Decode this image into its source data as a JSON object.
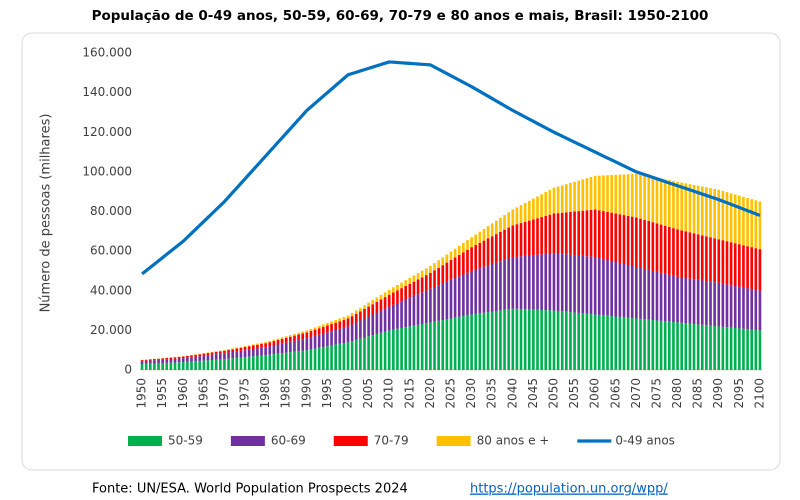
{
  "chart_data": {
    "type": "bar",
    "stacked": true,
    "title": "População de 0-49 anos, 50-59, 60-69, 70-79 e 80 anos e mais, Brasil: 1950-2100",
    "y_label": "Número de pessoas (milhares)",
    "source": "Fonte: UN/ESA. World Population Prospects 2024",
    "source_link": "https://population.un.org/wpp/",
    "categories": [
      "1950",
      null,
      null,
      null,
      null,
      "1955",
      null,
      null,
      null,
      null,
      "1960",
      null,
      null,
      null,
      null,
      "1965",
      null,
      null,
      null,
      null,
      "1970",
      null,
      null,
      null,
      null,
      "1975",
      null,
      null,
      null,
      null,
      "1980",
      null,
      null,
      null,
      null,
      "1985",
      null,
      null,
      null,
      null,
      "1990",
      null,
      null,
      null,
      null,
      "1995",
      null,
      null,
      null,
      null,
      "2000",
      null,
      null,
      null,
      null,
      "2005",
      null,
      null,
      null,
      null,
      "2010",
      null,
      null,
      null,
      null,
      "2015",
      null,
      null,
      null,
      null,
      "2020",
      null,
      null,
      null,
      null,
      "2025",
      null,
      null,
      null,
      null,
      "2030",
      null,
      null,
      null,
      null,
      "2035",
      null,
      null,
      null,
      null,
      "2040",
      null,
      null,
      null,
      null,
      "2045",
      null,
      null,
      null,
      null,
      "2050",
      null,
      null,
      null,
      null,
      "2055",
      null,
      null,
      null,
      null,
      "2060",
      null,
      null,
      null,
      null,
      "2065",
      null,
      null,
      null,
      null,
      "2070",
      null,
      null,
      null,
      null,
      "2075",
      null,
      null,
      null,
      null,
      "2080",
      null,
      null,
      null,
      null,
      "2085",
      null,
      null,
      null,
      null,
      "2090",
      null,
      null,
      null,
      null,
      "2095",
      null,
      null,
      null,
      null,
      "2100"
    ],
    "ylim": [
      0,
      160000
    ],
    "yticks": [
      0,
      {
        "value": 20000,
        "label": "20.000"
      },
      {
        "value": 40000,
        "label": "40.000"
      },
      {
        "value": 60000,
        "label": "60.000"
      },
      {
        "value": 80000,
        "label": "80.000"
      },
      {
        "value": 100000,
        "label": "100.000"
      },
      {
        "value": 120000,
        "label": "120.000"
      },
      {
        "value": 140000,
        "label": "140.000"
      },
      {
        "value": 160000,
        "label": "160.000"
      }
    ],
    "legend": "bottom",
    "series": [
      {
        "name": "50-59",
        "color": "#00b050",
        "values": [
          3000,
          3100,
          3200,
          3300,
          3400,
          3500,
          3600,
          3700,
          3800,
          3900,
          4000,
          4150,
          4300,
          4450,
          4600,
          4750,
          4900,
          5050,
          5200,
          5350,
          5500,
          5700,
          5900,
          6100,
          6300,
          6500,
          6700,
          6900,
          7100,
          7300,
          7500,
          7750,
          8000,
          8250,
          8500,
          8750,
          9000,
          9250,
          9500,
          9750,
          10000,
          10400,
          10800,
          11200,
          11600,
          12000,
          12400,
          12800,
          13200,
          13600,
          14000,
          14600,
          15200,
          15800,
          16400,
          17000,
          17600,
          18200,
          18800,
          19400,
          20000,
          20400,
          20800,
          21200,
          21600,
          22000,
          22400,
          22800,
          23200,
          23600,
          24000,
          24400,
          24800,
          25200,
          25600,
          26000,
          26400,
          26800,
          27200,
          27600,
          28000,
          28300,
          28600,
          28900,
          29200,
          29500,
          29800,
          30100,
          30400,
          30700,
          31000,
          30900,
          30800,
          30700,
          30600,
          30500,
          30400,
          30300,
          30200,
          30100,
          30000,
          29800,
          29600,
          29400,
          29200,
          29000,
          28800,
          28600,
          28400,
          28200,
          28000,
          27800,
          27600,
          27400,
          27200,
          27000,
          26800,
          26600,
          26400,
          26200,
          26000,
          25800,
          25600,
          25400,
          25200,
          25000,
          24800,
          24600,
          24400,
          24200,
          24000,
          23800,
          23600,
          23400,
          23200,
          23000,
          22800,
          22600,
          22400,
          22200,
          22000,
          21800,
          21600,
          21400,
          21200,
          21000,
          20800,
          20600,
          20400,
          20200,
          20000
        ]
      },
      {
        "name": "60-69",
        "color": "#7030a0",
        "values": [
          1500,
          1550,
          1600,
          1650,
          1700,
          1750,
          1800,
          1850,
          1900,
          1950,
          2000,
          2100,
          2200,
          2300,
          2400,
          2500,
          2600,
          2700,
          2800,
          2900,
          3000,
          3100,
          3200,
          3300,
          3400,
          3500,
          3600,
          3700,
          3800,
          3900,
          4000,
          4200,
          4400,
          4600,
          4800,
          5000,
          5200,
          5400,
          5600,
          5800,
          6000,
          6200,
          6400,
          6600,
          6800,
          7000,
          7200,
          7400,
          7600,
          7800,
          8000,
          8400,
          8800,
          9200,
          9600,
          10000,
          10400,
          10800,
          11200,
          11600,
          12000,
          12500,
          13000,
          13500,
          14000,
          14500,
          15000,
          15500,
          16000,
          16500,
          17000,
          17500,
          18000,
          18500,
          19000,
          19500,
          20000,
          20500,
          21000,
          21500,
          22000,
          22400,
          22800,
          23200,
          23600,
          24000,
          24400,
          24800,
          25200,
          25600,
          26000,
          26300,
          26600,
          26900,
          27200,
          27500,
          27800,
          28100,
          28400,
          28700,
          29000,
          29000,
          29000,
          29000,
          29000,
          29000,
          29000,
          29000,
          29000,
          29000,
          29000,
          28700,
          28400,
          28100,
          27800,
          27500,
          27200,
          26900,
          26600,
          26300,
          26000,
          25700,
          25400,
          25100,
          24800,
          24500,
          24200,
          23900,
          23600,
          23300,
          23000,
          22900,
          22800,
          22700,
          22600,
          22500,
          22400,
          22300,
          22200,
          22100,
          22000,
          21800,
          21600,
          21400,
          21200,
          21000,
          20800,
          20600,
          20400,
          20200,
          20000
        ]
      },
      {
        "name": "70-79",
        "color": "#ff0000",
        "values": [
          500,
          530,
          560,
          590,
          620,
          650,
          680,
          710,
          740,
          770,
          800,
          840,
          880,
          920,
          960,
          1000,
          1040,
          1080,
          1120,
          1160,
          1200,
          1280,
          1360,
          1440,
          1520,
          1600,
          1680,
          1760,
          1840,
          1920,
          2000,
          2100,
          2200,
          2300,
          2400,
          2500,
          2600,
          2700,
          2800,
          2900,
          3000,
          3100,
          3200,
          3300,
          3400,
          3500,
          3600,
          3700,
          3800,
          3900,
          4000,
          4200,
          4400,
          4600,
          4800,
          5000,
          5200,
          5400,
          5600,
          5800,
          6000,
          6200,
          6400,
          6600,
          6800,
          7000,
          7200,
          7400,
          7600,
          7800,
          8000,
          8400,
          8800,
          9200,
          9600,
          10000,
          10400,
          10800,
          11200,
          11600,
          12000,
          12400,
          12800,
          13200,
          13600,
          14000,
          14400,
          14800,
          15200,
          15600,
          16000,
          16400,
          16800,
          17200,
          17600,
          18000,
          18400,
          18800,
          19200,
          19600,
          20000,
          20400,
          20800,
          21200,
          21600,
          22000,
          22400,
          22800,
          23200,
          23600,
          24000,
          24100,
          24200,
          24300,
          24400,
          24500,
          24600,
          24700,
          24800,
          24900,
          25000,
          24900,
          24800,
          24700,
          24600,
          24500,
          24400,
          24300,
          24200,
          24100,
          24000,
          23800,
          23600,
          23400,
          23200,
          23000,
          22800,
          22600,
          22400,
          22200,
          22000,
          21900,
          21800,
          21700,
          21600,
          21500,
          21400,
          21300,
          21200,
          21100,
          21000
        ]
      },
      {
        "name": "80 anos e +",
        "color": "#ffc000",
        "values": [
          100,
          110,
          120,
          130,
          140,
          150,
          160,
          170,
          180,
          190,
          200,
          220,
          240,
          260,
          280,
          300,
          320,
          340,
          360,
          380,
          400,
          420,
          440,
          460,
          480,
          500,
          520,
          540,
          560,
          580,
          600,
          640,
          680,
          720,
          760,
          800,
          840,
          880,
          920,
          960,
          1000,
          1050,
          1100,
          1150,
          1200,
          1250,
          1300,
          1350,
          1400,
          1450,
          1500,
          1600,
          1700,
          1800,
          1900,
          2000,
          2100,
          2200,
          2300,
          2400,
          2500,
          2600,
          2700,
          2800,
          2900,
          3000,
          3100,
          3200,
          3300,
          3400,
          3500,
          3650,
          3800,
          3950,
          4100,
          4250,
          4400,
          4550,
          4700,
          4850,
          5000,
          5300,
          5600,
          5900,
          6200,
          6500,
          6800,
          7100,
          7400,
          7700,
          8000,
          8500,
          9000,
          9500,
          10000,
          10500,
          11000,
          11500,
          12000,
          12500,
          13000,
          13400,
          13800,
          14200,
          14600,
          15000,
          15400,
          15800,
          16200,
          16600,
          17000,
          17500,
          18000,
          18500,
          19000,
          19500,
          20000,
          20500,
          21000,
          21500,
          22000,
          22200,
          22400,
          22600,
          22800,
          23000,
          23200,
          23400,
          23600,
          23800,
          24000,
          24100,
          24200,
          24300,
          24400,
          24500,
          24600,
          24700,
          24800,
          24900,
          25000,
          24900,
          24800,
          24700,
          24600,
          24500,
          24400,
          24300,
          24200,
          24100,
          24000
        ]
      },
      {
        "name": "0-49 anos",
        "type": "line",
        "color": "#0070c0",
        "values": [
          48500,
          50150,
          51800,
          53450,
          55100,
          56750,
          58400,
          60050,
          61700,
          63350,
          65000,
          67000,
          69000,
          71000,
          73000,
          75000,
          77000,
          79000,
          81000,
          83000,
          85000,
          87300,
          89600,
          91900,
          94200,
          96500,
          98800,
          101100,
          103400,
          105700,
          108000,
          110300,
          112600,
          114900,
          117200,
          119500,
          121800,
          124100,
          126400,
          128700,
          131000,
          132800,
          134600,
          136400,
          138200,
          140000,
          141800,
          143600,
          145400,
          147200,
          149000,
          149650,
          150300,
          150950,
          151600,
          152250,
          152900,
          153550,
          154200,
          154850,
          155500,
          155350,
          155200,
          155050,
          154900,
          154750,
          154600,
          154450,
          154300,
          154150,
          154000,
          152900,
          151800,
          150700,
          149600,
          148500,
          147400,
          146300,
          145200,
          144100,
          143000,
          141800,
          140600,
          139400,
          138200,
          137000,
          135800,
          134600,
          133400,
          132200,
          131000,
          129900,
          128800,
          127700,
          126600,
          125500,
          124400,
          123300,
          122200,
          121100,
          120000,
          119000,
          118000,
          117000,
          116000,
          115000,
          114000,
          113000,
          112000,
          111000,
          110000,
          109000,
          108000,
          107000,
          106000,
          105000,
          104000,
          103000,
          102000,
          101000,
          100000,
          99300,
          98600,
          97900,
          97200,
          96500,
          95800,
          95100,
          94400,
          93700,
          93000,
          92300,
          91600,
          90900,
          90200,
          89500,
          88800,
          88100,
          87400,
          86700,
          86000,
          85200,
          84400,
          83600,
          82800,
          82000,
          81200,
          80400,
          79600,
          78800,
          78000
        ]
      }
    ]
  }
}
